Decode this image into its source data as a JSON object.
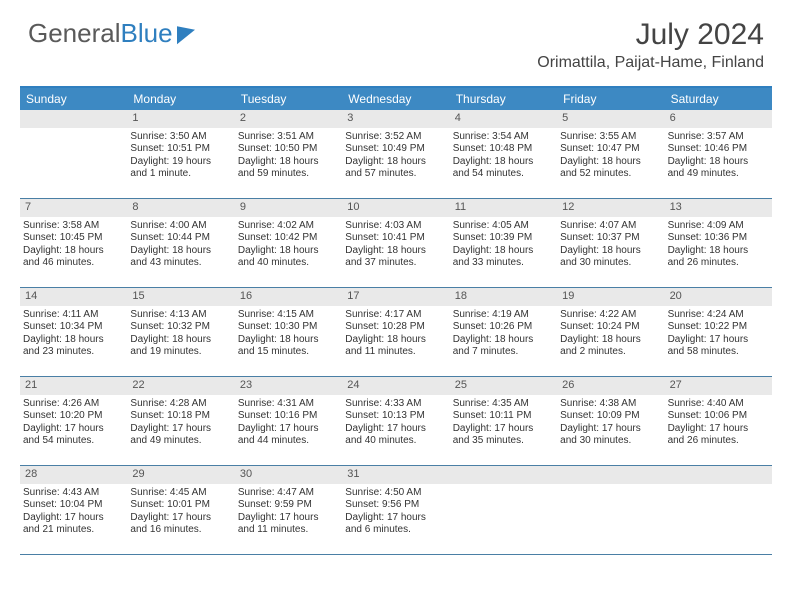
{
  "brand": {
    "word1": "General",
    "word2": "Blue"
  },
  "title": "July 2024",
  "location": "Orimattila, Paijat-Hame, Finland",
  "day_names": [
    "Sunday",
    "Monday",
    "Tuesday",
    "Wednesday",
    "Thursday",
    "Friday",
    "Saturday"
  ],
  "colors": {
    "header_bg": "#3d89c3",
    "header_border": "#2f7fbf",
    "week_border": "#4a7fa5",
    "daynum_bg": "#e9e9e9",
    "text": "#333333",
    "brand_gray": "#5a5a5a",
    "brand_blue": "#2f7fbf"
  },
  "weeks": [
    [
      {
        "n": "",
        "l1": "",
        "l2": "",
        "l3": "",
        "l4": ""
      },
      {
        "n": "1",
        "l1": "Sunrise: 3:50 AM",
        "l2": "Sunset: 10:51 PM",
        "l3": "Daylight: 19 hours",
        "l4": "and 1 minute."
      },
      {
        "n": "2",
        "l1": "Sunrise: 3:51 AM",
        "l2": "Sunset: 10:50 PM",
        "l3": "Daylight: 18 hours",
        "l4": "and 59 minutes."
      },
      {
        "n": "3",
        "l1": "Sunrise: 3:52 AM",
        "l2": "Sunset: 10:49 PM",
        "l3": "Daylight: 18 hours",
        "l4": "and 57 minutes."
      },
      {
        "n": "4",
        "l1": "Sunrise: 3:54 AM",
        "l2": "Sunset: 10:48 PM",
        "l3": "Daylight: 18 hours",
        "l4": "and 54 minutes."
      },
      {
        "n": "5",
        "l1": "Sunrise: 3:55 AM",
        "l2": "Sunset: 10:47 PM",
        "l3": "Daylight: 18 hours",
        "l4": "and 52 minutes."
      },
      {
        "n": "6",
        "l1": "Sunrise: 3:57 AM",
        "l2": "Sunset: 10:46 PM",
        "l3": "Daylight: 18 hours",
        "l4": "and 49 minutes."
      }
    ],
    [
      {
        "n": "7",
        "l1": "Sunrise: 3:58 AM",
        "l2": "Sunset: 10:45 PM",
        "l3": "Daylight: 18 hours",
        "l4": "and 46 minutes."
      },
      {
        "n": "8",
        "l1": "Sunrise: 4:00 AM",
        "l2": "Sunset: 10:44 PM",
        "l3": "Daylight: 18 hours",
        "l4": "and 43 minutes."
      },
      {
        "n": "9",
        "l1": "Sunrise: 4:02 AM",
        "l2": "Sunset: 10:42 PM",
        "l3": "Daylight: 18 hours",
        "l4": "and 40 minutes."
      },
      {
        "n": "10",
        "l1": "Sunrise: 4:03 AM",
        "l2": "Sunset: 10:41 PM",
        "l3": "Daylight: 18 hours",
        "l4": "and 37 minutes."
      },
      {
        "n": "11",
        "l1": "Sunrise: 4:05 AM",
        "l2": "Sunset: 10:39 PM",
        "l3": "Daylight: 18 hours",
        "l4": "and 33 minutes."
      },
      {
        "n": "12",
        "l1": "Sunrise: 4:07 AM",
        "l2": "Sunset: 10:37 PM",
        "l3": "Daylight: 18 hours",
        "l4": "and 30 minutes."
      },
      {
        "n": "13",
        "l1": "Sunrise: 4:09 AM",
        "l2": "Sunset: 10:36 PM",
        "l3": "Daylight: 18 hours",
        "l4": "and 26 minutes."
      }
    ],
    [
      {
        "n": "14",
        "l1": "Sunrise: 4:11 AM",
        "l2": "Sunset: 10:34 PM",
        "l3": "Daylight: 18 hours",
        "l4": "and 23 minutes."
      },
      {
        "n": "15",
        "l1": "Sunrise: 4:13 AM",
        "l2": "Sunset: 10:32 PM",
        "l3": "Daylight: 18 hours",
        "l4": "and 19 minutes."
      },
      {
        "n": "16",
        "l1": "Sunrise: 4:15 AM",
        "l2": "Sunset: 10:30 PM",
        "l3": "Daylight: 18 hours",
        "l4": "and 15 minutes."
      },
      {
        "n": "17",
        "l1": "Sunrise: 4:17 AM",
        "l2": "Sunset: 10:28 PM",
        "l3": "Daylight: 18 hours",
        "l4": "and 11 minutes."
      },
      {
        "n": "18",
        "l1": "Sunrise: 4:19 AM",
        "l2": "Sunset: 10:26 PM",
        "l3": "Daylight: 18 hours",
        "l4": "and 7 minutes."
      },
      {
        "n": "19",
        "l1": "Sunrise: 4:22 AM",
        "l2": "Sunset: 10:24 PM",
        "l3": "Daylight: 18 hours",
        "l4": "and 2 minutes."
      },
      {
        "n": "20",
        "l1": "Sunrise: 4:24 AM",
        "l2": "Sunset: 10:22 PM",
        "l3": "Daylight: 17 hours",
        "l4": "and 58 minutes."
      }
    ],
    [
      {
        "n": "21",
        "l1": "Sunrise: 4:26 AM",
        "l2": "Sunset: 10:20 PM",
        "l3": "Daylight: 17 hours",
        "l4": "and 54 minutes."
      },
      {
        "n": "22",
        "l1": "Sunrise: 4:28 AM",
        "l2": "Sunset: 10:18 PM",
        "l3": "Daylight: 17 hours",
        "l4": "and 49 minutes."
      },
      {
        "n": "23",
        "l1": "Sunrise: 4:31 AM",
        "l2": "Sunset: 10:16 PM",
        "l3": "Daylight: 17 hours",
        "l4": "and 44 minutes."
      },
      {
        "n": "24",
        "l1": "Sunrise: 4:33 AM",
        "l2": "Sunset: 10:13 PM",
        "l3": "Daylight: 17 hours",
        "l4": "and 40 minutes."
      },
      {
        "n": "25",
        "l1": "Sunrise: 4:35 AM",
        "l2": "Sunset: 10:11 PM",
        "l3": "Daylight: 17 hours",
        "l4": "and 35 minutes."
      },
      {
        "n": "26",
        "l1": "Sunrise: 4:38 AM",
        "l2": "Sunset: 10:09 PM",
        "l3": "Daylight: 17 hours",
        "l4": "and 30 minutes."
      },
      {
        "n": "27",
        "l1": "Sunrise: 4:40 AM",
        "l2": "Sunset: 10:06 PM",
        "l3": "Daylight: 17 hours",
        "l4": "and 26 minutes."
      }
    ],
    [
      {
        "n": "28",
        "l1": "Sunrise: 4:43 AM",
        "l2": "Sunset: 10:04 PM",
        "l3": "Daylight: 17 hours",
        "l4": "and 21 minutes."
      },
      {
        "n": "29",
        "l1": "Sunrise: 4:45 AM",
        "l2": "Sunset: 10:01 PM",
        "l3": "Daylight: 17 hours",
        "l4": "and 16 minutes."
      },
      {
        "n": "30",
        "l1": "Sunrise: 4:47 AM",
        "l2": "Sunset: 9:59 PM",
        "l3": "Daylight: 17 hours",
        "l4": "and 11 minutes."
      },
      {
        "n": "31",
        "l1": "Sunrise: 4:50 AM",
        "l2": "Sunset: 9:56 PM",
        "l3": "Daylight: 17 hours",
        "l4": "and 6 minutes."
      },
      {
        "n": "",
        "l1": "",
        "l2": "",
        "l3": "",
        "l4": ""
      },
      {
        "n": "",
        "l1": "",
        "l2": "",
        "l3": "",
        "l4": ""
      },
      {
        "n": "",
        "l1": "",
        "l2": "",
        "l3": "",
        "l4": ""
      }
    ]
  ]
}
